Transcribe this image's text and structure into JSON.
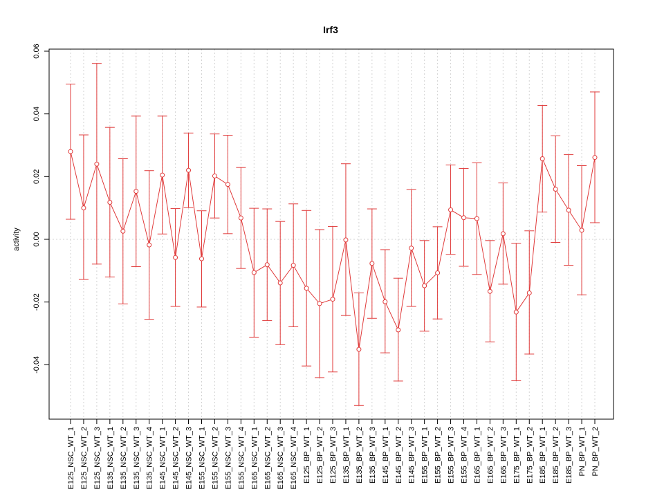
{
  "chart_data": {
    "type": "line",
    "title": "Irf3",
    "xlabel": "",
    "ylabel": "activity",
    "ylim": [
      -0.058,
      0.06
    ],
    "yticks": [
      -0.04,
      -0.02,
      0.0,
      0.02,
      0.04,
      0.06
    ],
    "ytick_labels": [
      "-0.04",
      "-0.02",
      "0.00",
      "0.02",
      "0.04",
      "0.06"
    ],
    "grid": true,
    "color": "#e03a3a",
    "categories": [
      "E125_NSC_WT_1",
      "E125_NSC_WT_2",
      "E125_NSC_WT_3",
      "E135_NSC_WT_1",
      "E135_NSC_WT_2",
      "E135_NSC_WT_3",
      "E135_NSC_WT_4",
      "E145_NSC_WT_1",
      "E145_NSC_WT_2",
      "E145_NSC_WT_3",
      "E155_NSC_WT_1",
      "E155_NSC_WT_2",
      "E155_NSC_WT_3",
      "E155_NSC_WT_4",
      "E165_NSC_WT_1",
      "E165_NSC_WT_2",
      "E165_NSC_WT_3",
      "E165_NSC_WT_4",
      "E125_BP_WT_1",
      "E125_BP_WT_2",
      "E125_BP_WT_3",
      "E135_BP_WT_1",
      "E135_BP_WT_2",
      "E135_BP_WT_3",
      "E145_BP_WT_1",
      "E145_BP_WT_2",
      "E145_BP_WT_3",
      "E155_BP_WT_1",
      "E155_BP_WT_2",
      "E155_BP_WT_3",
      "E155_BP_WT_4",
      "E165_BP_WT_1",
      "E165_BP_WT_2",
      "E165_BP_WT_3",
      "E175_BP_WT_1",
      "E175_BP_WT_2",
      "E185_BP_WT_1",
      "E185_BP_WT_2",
      "E185_BP_WT_3",
      "PN_BP_WT_1",
      "PN_BP_WT_2"
    ],
    "values": [
      0.028,
      0.01,
      0.024,
      0.0118,
      0.0026,
      0.0153,
      -0.0018,
      0.0205,
      -0.0058,
      0.022,
      -0.0062,
      0.0202,
      0.0175,
      0.0068,
      -0.0106,
      -0.0081,
      -0.0139,
      -0.0083,
      -0.0156,
      -0.0205,
      -0.0191,
      -0.0002,
      -0.0351,
      -0.0077,
      -0.0199,
      -0.0289,
      -0.0028,
      -0.0148,
      -0.0107,
      0.0094,
      0.0069,
      0.0066,
      -0.0166,
      0.0018,
      -0.0232,
      -0.0171,
      0.0257,
      0.016,
      0.0093,
      0.0029,
      0.0261
    ],
    "upper": [
      0.0495,
      0.0333,
      0.0561,
      0.0357,
      0.0257,
      0.0393,
      0.0219,
      0.0393,
      0.0098,
      0.0339,
      0.0091,
      0.0336,
      0.0332,
      0.0229,
      0.0099,
      0.0097,
      0.0057,
      0.0113,
      0.0092,
      0.0031,
      0.0041,
      0.0241,
      -0.0171,
      0.0097,
      -0.0033,
      -0.0124,
      0.0159,
      -0.0004,
      0.004,
      0.0237,
      0.0226,
      0.0244,
      -0.0004,
      0.018,
      -0.0013,
      0.0027,
      0.0427,
      0.033,
      0.027,
      0.0235,
      0.047
    ],
    "lower": [
      0.0064,
      -0.0128,
      -0.0079,
      -0.012,
      -0.0206,
      -0.0087,
      -0.0255,
      0.0017,
      -0.0214,
      0.0101,
      -0.0216,
      0.0068,
      0.0018,
      -0.0093,
      -0.0312,
      -0.0259,
      -0.0336,
      -0.0279,
      -0.0404,
      -0.0441,
      -0.0423,
      -0.0243,
      -0.053,
      -0.0252,
      -0.0362,
      -0.0452,
      -0.0214,
      -0.0293,
      -0.0254,
      -0.0048,
      -0.0086,
      -0.0112,
      -0.0327,
      -0.0143,
      -0.0451,
      -0.0366,
      0.0087,
      -0.001,
      -0.0083,
      -0.0177,
      0.0053
    ]
  }
}
